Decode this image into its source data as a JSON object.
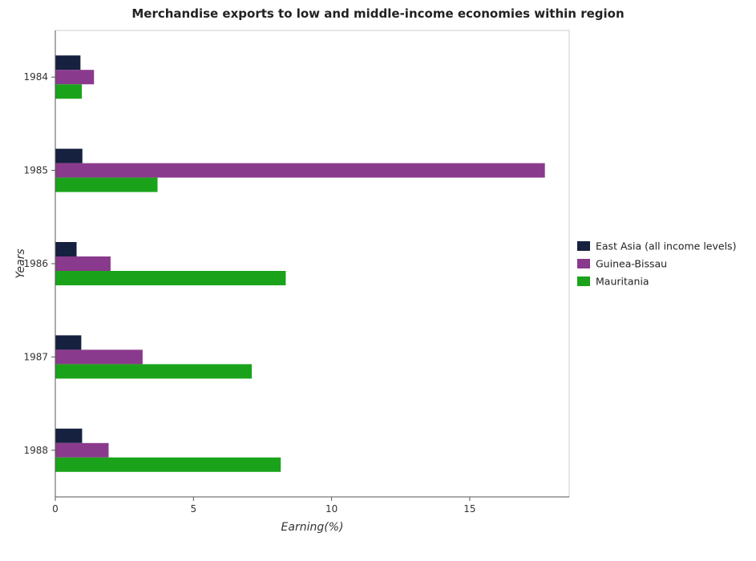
{
  "chart_data": {
    "type": "bar",
    "orientation": "horizontal",
    "title": "Merchandise exports to low and middle-income economies within region",
    "xlabel": "Earning(%)",
    "ylabel": "Years",
    "categories": [
      "1984",
      "1985",
      "1986",
      "1987",
      "1988"
    ],
    "xlim": [
      0,
      18.6
    ],
    "xticks": [
      0,
      5,
      10,
      15
    ],
    "grid": false,
    "legend_position": "right",
    "series": [
      {
        "name": "East Asia (all income levels)",
        "color": "#15213f",
        "values": [
          0.91,
          0.98,
          0.77,
          0.94,
          0.97
        ]
      },
      {
        "name": "Guinea-Bissau",
        "color": "#8a3a8c",
        "values": [
          1.4,
          17.72,
          2.0,
          3.16,
          1.93
        ]
      },
      {
        "name": "Mauritania",
        "color": "#1aa31a",
        "values": [
          0.96,
          3.7,
          8.34,
          7.11,
          8.16
        ]
      }
    ]
  }
}
